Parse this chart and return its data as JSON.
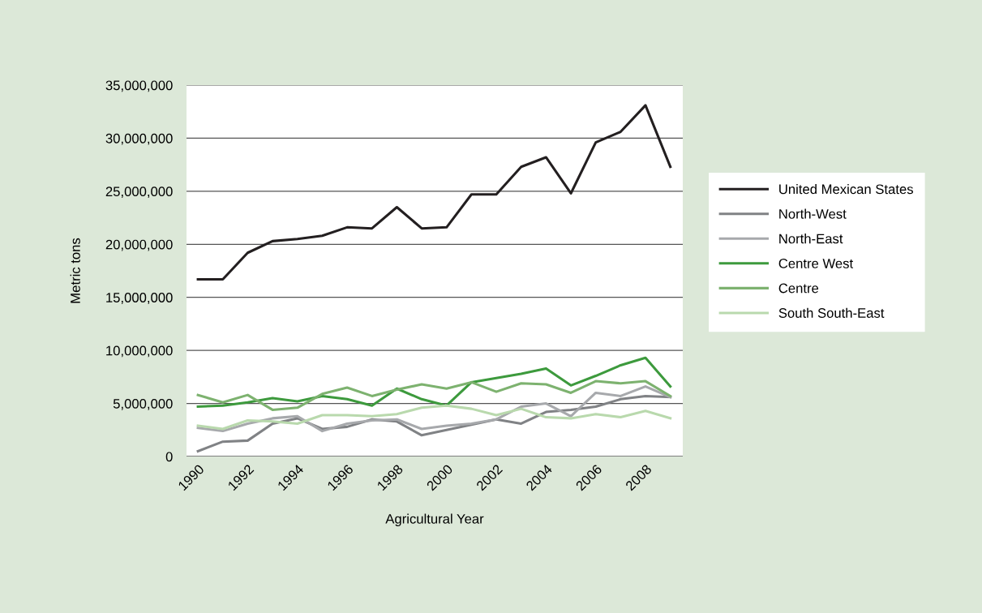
{
  "chart_data": {
    "type": "line",
    "xlabel": "Agricultural Year",
    "ylabel": "Metric tons",
    "categories": [
      "1990",
      null,
      "1992",
      null,
      "1994",
      null,
      "1996",
      null,
      "1998",
      null,
      "2000",
      null,
      "2002",
      null,
      "2004",
      null,
      "2006",
      null,
      "2008",
      null
    ],
    "series": [
      {
        "name": "United Mexican States",
        "color": "#231f20",
        "values": [
          16700000,
          16700000,
          19200000,
          20300000,
          20500000,
          20800000,
          21600000,
          21500000,
          23500000,
          21500000,
          21600000,
          24700000,
          24700000,
          27300000,
          28200000,
          24800000,
          29600000,
          30600000,
          33100000,
          27300000
        ]
      },
      {
        "name": "North-West",
        "color": "#808285",
        "values": [
          500000,
          1400000,
          1500000,
          3100000,
          3600000,
          2600000,
          2800000,
          3500000,
          3300000,
          2000000,
          2500000,
          3000000,
          3500000,
          3100000,
          4200000,
          4400000,
          4700000,
          5400000,
          5700000,
          5600000
        ]
      },
      {
        "name": "North-East",
        "color": "#a7a9ac",
        "values": [
          2700000,
          2400000,
          3100000,
          3600000,
          3800000,
          2400000,
          3100000,
          3400000,
          3500000,
          2600000,
          2900000,
          3100000,
          3500000,
          4700000,
          5000000,
          3800000,
          6000000,
          5700000,
          6600000,
          5600000
        ]
      },
      {
        "name": "Centre West",
        "color": "#3d9a3d",
        "values": [
          4700000,
          4800000,
          5100000,
          5500000,
          5200000,
          5700000,
          5400000,
          4800000,
          6400000,
          5400000,
          4800000,
          7000000,
          7400000,
          7800000,
          8300000,
          6700000,
          7600000,
          8600000,
          9300000,
          6600000
        ]
      },
      {
        "name": "Centre",
        "color": "#7db26f",
        "values": [
          5800000,
          5100000,
          5800000,
          4400000,
          4600000,
          5900000,
          6500000,
          5700000,
          6300000,
          6800000,
          6400000,
          7000000,
          6100000,
          6900000,
          6800000,
          6000000,
          7100000,
          6900000,
          7100000,
          5700000
        ]
      },
      {
        "name": "South South-East",
        "color": "#b9d9ad",
        "values": [
          2900000,
          2600000,
          3400000,
          3300000,
          3100000,
          3900000,
          3900000,
          3800000,
          4000000,
          4600000,
          4800000,
          4500000,
          3900000,
          4500000,
          3700000,
          3600000,
          4000000,
          3700000,
          4300000,
          3600000
        ]
      }
    ],
    "ylim": [
      0,
      35000000
    ],
    "yticks": [
      {
        "value": 0,
        "label": "0"
      },
      {
        "value": 5000000,
        "label": "5,000,000"
      },
      {
        "value": 10000000,
        "label": "10,000,000"
      },
      {
        "value": 15000000,
        "label": "15,000,000"
      },
      {
        "value": 20000000,
        "label": "20,000,000"
      },
      {
        "value": 25000000,
        "label": "25,000,000"
      },
      {
        "value": 30000000,
        "label": "30,000,000"
      },
      {
        "value": 35000000,
        "label": "35,000,000"
      }
    ],
    "grid": "y",
    "legend": "right",
    "marker": "none",
    "line_style": "solid"
  }
}
